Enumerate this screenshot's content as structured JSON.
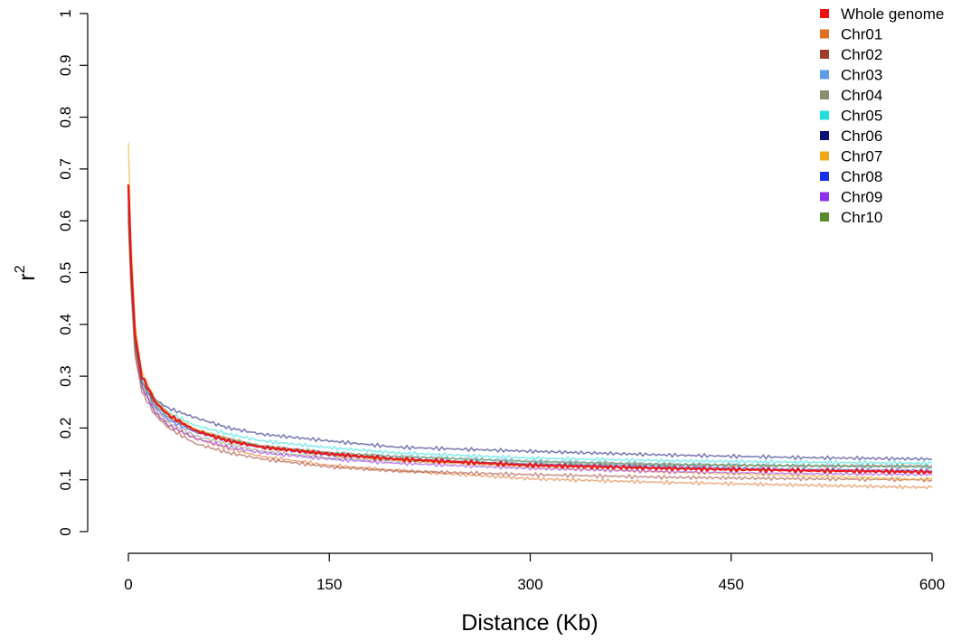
{
  "chart_data": {
    "type": "line",
    "title": "",
    "xlabel": "Distance (Kb)",
    "ylabel": "r",
    "ylabel_superscript": "2",
    "xlim": [
      0,
      600
    ],
    "ylim": [
      0,
      1
    ],
    "x_ticks": [
      "0",
      "150",
      "300",
      "450",
      "600"
    ],
    "y_ticks": [
      "0",
      "0.1",
      "0.2",
      "0.3",
      "0.4",
      "0.5",
      "0.6",
      "0.7",
      "0.8",
      "0.9",
      "1"
    ],
    "grid": false,
    "legend_position": "top-right",
    "series": [
      {
        "name": "Whole genome",
        "color": "#ee1111",
        "x": [
          0,
          2,
          5,
          10,
          20,
          30,
          50,
          75,
          100,
          150,
          200,
          300,
          400,
          500,
          600
        ],
        "y": [
          0.67,
          0.52,
          0.38,
          0.3,
          0.25,
          0.225,
          0.195,
          0.175,
          0.163,
          0.15,
          0.14,
          0.128,
          0.122,
          0.118,
          0.115
        ]
      },
      {
        "name": "Chr01",
        "color": "#e07020",
        "x": [
          0,
          2,
          5,
          10,
          20,
          30,
          50,
          75,
          100,
          150,
          200,
          300,
          400,
          500,
          600
        ],
        "y": [
          0.62,
          0.48,
          0.35,
          0.28,
          0.23,
          0.205,
          0.18,
          0.16,
          0.145,
          0.128,
          0.118,
          0.102,
          0.095,
          0.09,
          0.085
        ]
      },
      {
        "name": "Chr02",
        "color": "#a03d2a",
        "x": [
          0,
          2,
          5,
          10,
          20,
          30,
          50,
          75,
          100,
          150,
          200,
          300,
          400,
          500,
          600
        ],
        "y": [
          0.6,
          0.47,
          0.34,
          0.27,
          0.225,
          0.2,
          0.17,
          0.152,
          0.14,
          0.125,
          0.117,
          0.11,
          0.105,
          0.102,
          0.1
        ]
      },
      {
        "name": "Chr03",
        "color": "#5e9ae8",
        "x": [
          0,
          2,
          5,
          10,
          20,
          30,
          50,
          75,
          100,
          150,
          200,
          300,
          400,
          500,
          600
        ],
        "y": [
          0.64,
          0.5,
          0.37,
          0.29,
          0.245,
          0.22,
          0.195,
          0.178,
          0.165,
          0.152,
          0.145,
          0.136,
          0.13,
          0.127,
          0.125
        ]
      },
      {
        "name": "Chr04",
        "color": "#8c8c70",
        "x": [
          0,
          2,
          5,
          10,
          20,
          30,
          50,
          75,
          100,
          150,
          200,
          300,
          400,
          500,
          600
        ],
        "y": [
          0.61,
          0.48,
          0.35,
          0.28,
          0.235,
          0.21,
          0.185,
          0.168,
          0.155,
          0.142,
          0.136,
          0.13,
          0.128,
          0.127,
          0.128
        ]
      },
      {
        "name": "Chr05",
        "color": "#22dddd",
        "x": [
          0,
          2,
          5,
          10,
          20,
          30,
          50,
          75,
          100,
          150,
          200,
          300,
          400,
          500,
          600
        ],
        "y": [
          0.63,
          0.5,
          0.37,
          0.3,
          0.255,
          0.23,
          0.205,
          0.188,
          0.175,
          0.162,
          0.152,
          0.142,
          0.137,
          0.134,
          0.132
        ]
      },
      {
        "name": "Chr06",
        "color": "#10107a",
        "x": [
          0,
          2,
          5,
          10,
          20,
          30,
          50,
          75,
          100,
          150,
          200,
          300,
          400,
          500,
          600
        ],
        "y": [
          0.66,
          0.52,
          0.38,
          0.3,
          0.255,
          0.238,
          0.22,
          0.2,
          0.188,
          0.175,
          0.163,
          0.155,
          0.148,
          0.143,
          0.14
        ]
      },
      {
        "name": "Chr07",
        "color": "#f0a818",
        "x": [
          0,
          2,
          5,
          10,
          20,
          30,
          50,
          75,
          100,
          150,
          200,
          300,
          400,
          500,
          600
        ],
        "y": [
          0.75,
          0.56,
          0.4,
          0.31,
          0.255,
          0.228,
          0.198,
          0.178,
          0.163,
          0.148,
          0.138,
          0.125,
          0.115,
          0.108,
          0.1
        ]
      },
      {
        "name": "Chr08",
        "color": "#1a2ef0",
        "x": [
          0,
          2,
          5,
          10,
          20,
          30,
          50,
          75,
          100,
          150,
          200,
          300,
          400,
          500,
          600
        ],
        "y": [
          0.65,
          0.51,
          0.37,
          0.29,
          0.24,
          0.215,
          0.192,
          0.175,
          0.162,
          0.148,
          0.14,
          0.13,
          0.125,
          0.12,
          0.118
        ]
      },
      {
        "name": "Chr09",
        "color": "#8f30ee",
        "x": [
          0,
          2,
          5,
          10,
          20,
          30,
          50,
          75,
          100,
          150,
          200,
          300,
          400,
          500,
          600
        ],
        "y": [
          0.63,
          0.49,
          0.36,
          0.28,
          0.23,
          0.205,
          0.18,
          0.163,
          0.152,
          0.14,
          0.132,
          0.122,
          0.116,
          0.112,
          0.11
        ]
      },
      {
        "name": "Chr10",
        "color": "#5a8a30",
        "x": [
          0,
          2,
          5,
          10,
          20,
          30,
          50,
          75,
          100,
          150,
          200,
          300,
          400,
          500,
          600
        ],
        "y": [
          0.62,
          0.49,
          0.36,
          0.29,
          0.245,
          0.22,
          0.195,
          0.178,
          0.165,
          0.152,
          0.145,
          0.135,
          0.13,
          0.127,
          0.125
        ]
      }
    ]
  }
}
